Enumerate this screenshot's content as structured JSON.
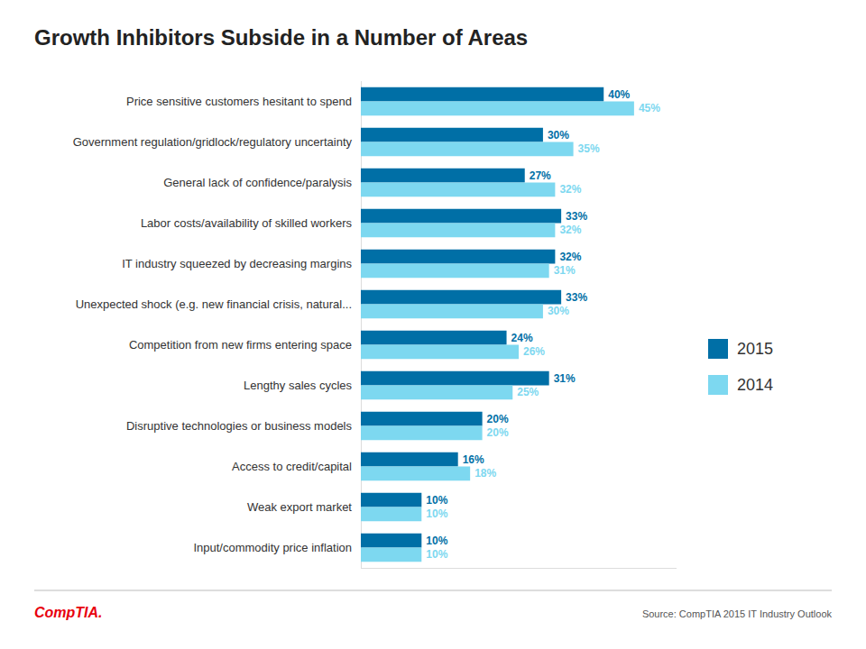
{
  "chart_data": {
    "type": "bar",
    "orientation": "horizontal",
    "title": "Growth Inhibitors Subside in a Number of Areas",
    "categories": [
      "Price sensitive customers hesitant to spend",
      "Government regulation/gridlock/regulatory uncertainty",
      "General lack of confidence/paralysis",
      "Labor costs/availability of skilled workers",
      "IT industry squeezed by decreasing margins",
      "Unexpected shock (e.g. new financial crisis, natural...",
      "Competition from new firms entering space",
      "Lengthy sales cycles",
      "Disruptive technologies or business models",
      "Access to credit/capital",
      "Weak export market",
      "Input/commodity price inflation"
    ],
    "series": [
      {
        "name": "2015",
        "color": "#006FA6",
        "values": [
          40,
          30,
          27,
          33,
          32,
          33,
          24,
          31,
          20,
          16,
          10,
          10
        ],
        "value_labels": [
          "40%",
          "30%",
          "27%",
          "33%",
          "32%",
          "33%",
          "24%",
          "31%",
          "20%",
          "16%",
          "10%",
          "10%"
        ]
      },
      {
        "name": "2014",
        "color": "#7DD8F0",
        "values": [
          45,
          35,
          32,
          32,
          31,
          30,
          26,
          25,
          20,
          18,
          10,
          10
        ],
        "value_labels": [
          "45%",
          "35%",
          "32%",
          "32%",
          "31%",
          "30%",
          "26%",
          "25%",
          "20%",
          "18%",
          "10%",
          "10%"
        ]
      }
    ],
    "xlim": [
      0,
      52
    ],
    "tick_labels": "y",
    "data_labels": true,
    "grid": false,
    "legend": "right",
    "annotations": [
      {
        "text": "Source: CompTIA 2015 IT Industry Outlook",
        "color": "#555555"
      },
      {
        "text": "CompTIA.",
        "color": "#E8000D"
      }
    ]
  }
}
